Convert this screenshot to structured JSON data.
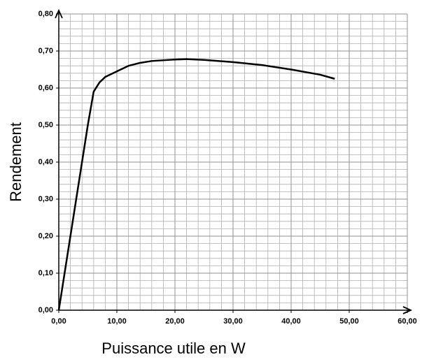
{
  "chart_data": {
    "type": "line",
    "xlabel": "Puissance utile en W",
    "ylabel": "Rendement",
    "x": [
      0,
      1,
      2,
      3,
      4,
      5,
      6,
      7,
      8,
      10,
      12,
      14,
      16,
      20,
      22,
      25,
      30,
      35,
      40,
      45,
      47.5
    ],
    "series": [
      {
        "name": "Rendement",
        "color": "#000000",
        "values": [
          0,
          0.1,
          0.2,
          0.3,
          0.4,
          0.5,
          0.59,
          0.615,
          0.63,
          0.645,
          0.66,
          0.668,
          0.673,
          0.677,
          0.678,
          0.676,
          0.67,
          0.662,
          0.65,
          0.636,
          0.625
        ]
      }
    ],
    "xlim": [
      0,
      60
    ],
    "ylim": [
      0,
      0.8
    ],
    "xticks": [
      {
        "value": 0,
        "label": "0,00"
      },
      {
        "value": 10,
        "label": "10,00"
      },
      {
        "value": 20,
        "label": "20,00"
      },
      {
        "value": 30,
        "label": "30,00"
      },
      {
        "value": 40,
        "label": "40,00"
      },
      {
        "value": 50,
        "label": "50,00"
      },
      {
        "value": 60,
        "label": "60,00"
      }
    ],
    "yticks": [
      {
        "value": 0,
        "label": "0,00"
      },
      {
        "value": 0.1,
        "label": "0,10"
      },
      {
        "value": 0.2,
        "label": "0,20"
      },
      {
        "value": 0.3,
        "label": "0,30"
      },
      {
        "value": 0.4,
        "label": "0,40"
      },
      {
        "value": 0.5,
        "label": "0,50"
      },
      {
        "value": 0.6,
        "label": "0,60"
      },
      {
        "value": 0.7,
        "label": "0,70"
      },
      {
        "value": 0.8,
        "label": "0,80"
      }
    ],
    "grid": true
  }
}
